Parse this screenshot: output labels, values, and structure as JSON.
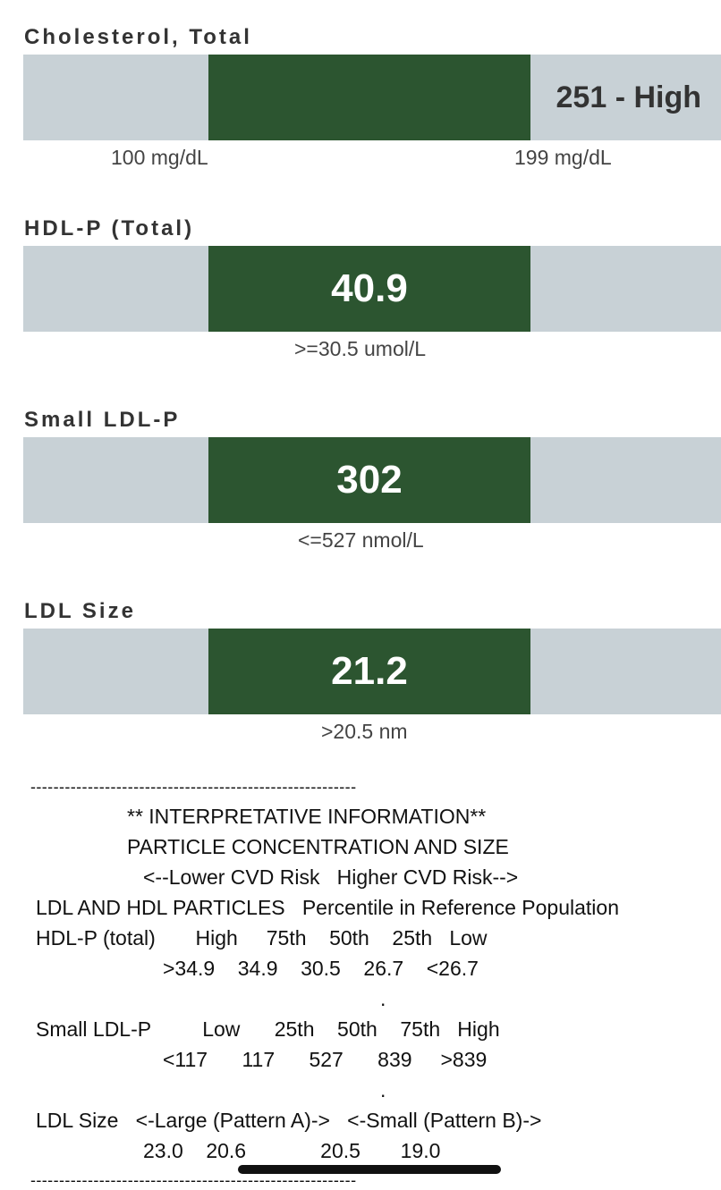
{
  "panels": [
    {
      "title": "Cholesterol, Total",
      "value": "251 - High",
      "ranges": [
        "100 mg/dL",
        "199 mg/dL"
      ]
    },
    {
      "title": "HDL-P (Total)",
      "value": "40.9",
      "range": ">=30.5 umol/L"
    },
    {
      "title": "Small LDL-P",
      "value": "302",
      "range": "<=527 nmol/L"
    },
    {
      "title": "LDL Size",
      "value": "21.2",
      "range": ">20.5 nm"
    }
  ],
  "interp": {
    "divider": "---------------------------------------------------------",
    "heading": "** INTERPRETATIVE INFORMATION**",
    "subheading": "PARTICLE CONCENTRATION AND SIZE",
    "risk_line": "<--Lower CVD Risk   Higher CVD Risk-->",
    "col_header": "LDL AND HDL PARTICLES   Percentile in Reference Population",
    "hdl_row": "HDL-P (total)       High     75th    50th    25th   Low",
    "hdl_vals": ">34.9    34.9    30.5    26.7    <26.7",
    "dot": ".",
    "ldlp_row": "Small LDL-P         Low      25th    50th    75th   High",
    "ldlp_vals": "<117      117      527      839     >839",
    "size_row": "LDL Size   <-Large (Pattern A)->   <-Small (Pattern B)->",
    "size_vals": "23.0    20.6             20.5       19.0"
  }
}
